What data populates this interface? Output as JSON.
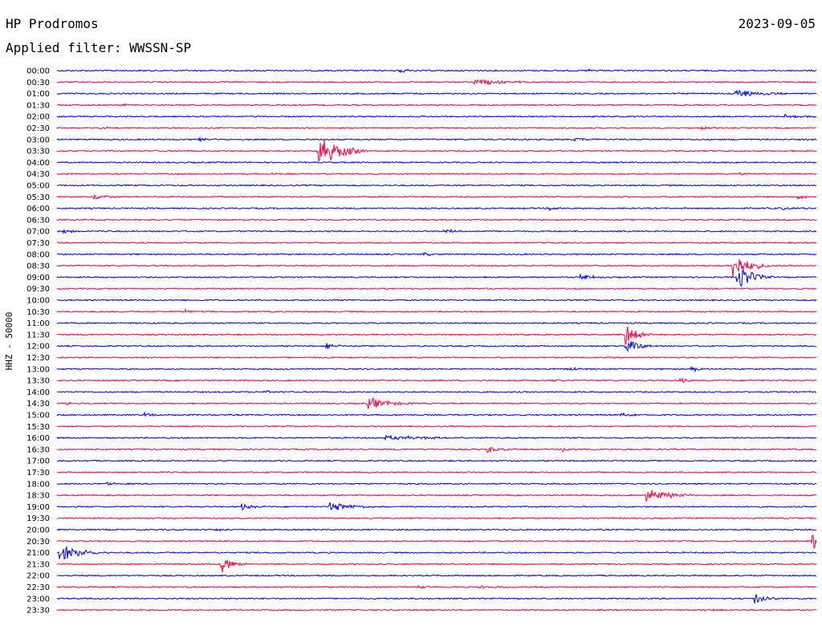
{
  "header": {
    "station": "HP Prodromos",
    "date": "2023-09-05",
    "filter": "Applied filter: WWSSN-SP"
  },
  "chart_data": {
    "type": "line",
    "title": "HP Prodromos",
    "date": "2023-09-05",
    "ylabel": "HHZ - 50000",
    "colors": [
      "#0000ff",
      "#ff0040"
    ],
    "row_labels": [
      "00:00",
      "00:30",
      "01:00",
      "01:30",
      "02:00",
      "02:30",
      "03:00",
      "03:30",
      "04:00",
      "04:30",
      "05:00",
      "05:30",
      "06:00",
      "06:30",
      "07:00",
      "07:30",
      "08:00",
      "08:30",
      "09:00",
      "09:30",
      "10:00",
      "10:30",
      "11:00",
      "11:30",
      "12:00",
      "12:30",
      "13:00",
      "13:30",
      "14:00",
      "14:30",
      "15:00",
      "15:30",
      "16:00",
      "16:30",
      "17:00",
      "17:30",
      "18:00",
      "18:30",
      "19:00",
      "19:30",
      "20:00",
      "20:30",
      "21:00",
      "21:30",
      "22:00",
      "22:30",
      "23:00",
      "23:30"
    ],
    "row_minutes": 30,
    "events": [
      {
        "row": "00:00",
        "minute": 13.5,
        "amp": 0.35,
        "dur": 1.5
      },
      {
        "row": "00:00",
        "minute": 21,
        "amp": 0.3,
        "dur": 1.0
      },
      {
        "row": "00:30",
        "minute": 16.5,
        "amp": 0.7,
        "dur": 2.5
      },
      {
        "row": "01:00",
        "minute": 26.8,
        "amp": 1.0,
        "dur": 2.5
      },
      {
        "row": "01:30",
        "minute": 2.5,
        "amp": 0.3,
        "dur": 1.0
      },
      {
        "row": "02:00",
        "minute": 28.8,
        "amp": 0.5,
        "dur": 1.5
      },
      {
        "row": "02:30",
        "minute": 1.7,
        "amp": 0.25,
        "dur": 1.0
      },
      {
        "row": "02:30",
        "minute": 25.5,
        "amp": 0.25,
        "dur": 1.0
      },
      {
        "row": "03:00",
        "minute": 5.6,
        "amp": 0.4,
        "dur": 1.0
      },
      {
        "row": "03:00",
        "minute": 20.5,
        "amp": 0.45,
        "dur": 1.0
      },
      {
        "row": "03:30",
        "minute": 10.3,
        "amp": 3.5,
        "dur": 2.0
      },
      {
        "row": "04:00",
        "minute": 26.5,
        "amp": 0.35,
        "dur": 1.5
      },
      {
        "row": "04:30",
        "minute": 8.5,
        "amp": 0.25,
        "dur": 1.0
      },
      {
        "row": "04:30",
        "minute": 27.0,
        "amp": 0.25,
        "dur": 1.0
      },
      {
        "row": "05:30",
        "minute": 1.5,
        "amp": 0.6,
        "dur": 1.0
      },
      {
        "row": "05:30",
        "minute": 29.3,
        "amp": 0.4,
        "dur": 1.5
      },
      {
        "row": "06:00",
        "minute": 19.5,
        "amp": 0.35,
        "dur": 1.0
      },
      {
        "row": "06:00",
        "minute": 28.5,
        "amp": 0.3,
        "dur": 1.5
      },
      {
        "row": "07:00",
        "minute": 0.3,
        "amp": 0.4,
        "dur": 1.5
      },
      {
        "row": "07:00",
        "minute": 15.3,
        "amp": 0.4,
        "dur": 1.5
      },
      {
        "row": "08:00",
        "minute": 14.5,
        "amp": 0.3,
        "dur": 1.0
      },
      {
        "row": "08:30",
        "minute": 26.7,
        "amp": 3.0,
        "dur": 1.5
      },
      {
        "row": "09:00",
        "minute": 20.7,
        "amp": 0.7,
        "dur": 1.0
      },
      {
        "row": "09:00",
        "minute": 26.9,
        "amp": 2.5,
        "dur": 1.5
      },
      {
        "row": "09:30",
        "minute": 12.7,
        "amp": 0.3,
        "dur": 1.0
      },
      {
        "row": "10:30",
        "minute": 5.1,
        "amp": 0.6,
        "dur": 0.3
      },
      {
        "row": "11:30",
        "minute": 22.5,
        "amp": 2.2,
        "dur": 1.0
      },
      {
        "row": "12:00",
        "minute": 10.6,
        "amp": 0.8,
        "dur": 1.0
      },
      {
        "row": "12:00",
        "minute": 22.5,
        "amp": 1.6,
        "dur": 1.0
      },
      {
        "row": "13:00",
        "minute": 20.2,
        "amp": 0.35,
        "dur": 1.0
      },
      {
        "row": "13:00",
        "minute": 25.1,
        "amp": 0.5,
        "dur": 1.0
      },
      {
        "row": "13:30",
        "minute": 19.5,
        "amp": 0.3,
        "dur": 1.0
      },
      {
        "row": "13:30",
        "minute": 24.6,
        "amp": 0.6,
        "dur": 0.5
      },
      {
        "row": "14:00",
        "minute": 8.2,
        "amp": 0.25,
        "dur": 1.0
      },
      {
        "row": "14:30",
        "minute": 0.4,
        "amp": 0.3,
        "dur": 1.0
      },
      {
        "row": "14:30",
        "minute": 12.3,
        "amp": 1.3,
        "dur": 2.0
      },
      {
        "row": "15:00",
        "minute": 3.5,
        "amp": 0.4,
        "dur": 1.0
      },
      {
        "row": "15:00",
        "minute": 22.3,
        "amp": 0.5,
        "dur": 1.0
      },
      {
        "row": "16:00",
        "minute": 13.0,
        "amp": 0.4,
        "dur": 6.0
      },
      {
        "row": "16:30",
        "minute": 17.0,
        "amp": 0.8,
        "dur": 1.0
      },
      {
        "row": "16:30",
        "minute": 20.0,
        "amp": 0.6,
        "dur": 0.5
      },
      {
        "row": "17:00",
        "minute": 5.5,
        "amp": 0.2,
        "dur": 1.5
      },
      {
        "row": "18:00",
        "minute": 2.0,
        "amp": 0.3,
        "dur": 1.0
      },
      {
        "row": "18:30",
        "minute": 23.3,
        "amp": 1.5,
        "dur": 2.0
      },
      {
        "row": "19:00",
        "minute": 7.3,
        "amp": 0.6,
        "dur": 1.0
      },
      {
        "row": "19:00",
        "minute": 10.8,
        "amp": 1.0,
        "dur": 2.0
      },
      {
        "row": "20:00",
        "minute": 6.3,
        "amp": 0.3,
        "dur": 0.5
      },
      {
        "row": "20:30",
        "minute": 29.8,
        "amp": 2.0,
        "dur": 1.0
      },
      {
        "row": "21:00",
        "minute": 0.1,
        "amp": 1.8,
        "dur": 2.0
      },
      {
        "row": "21:30",
        "minute": 6.5,
        "amp": 1.8,
        "dur": 1.0
      },
      {
        "row": "22:30",
        "minute": 14.3,
        "amp": 0.3,
        "dur": 1.0
      },
      {
        "row": "22:30",
        "minute": 16.7,
        "amp": 0.3,
        "dur": 1.0
      },
      {
        "row": "23:00",
        "minute": 27.6,
        "amp": 1.2,
        "dur": 1.0
      },
      {
        "row": "23:30",
        "minute": 25.6,
        "amp": 0.3,
        "dur": 1.0
      }
    ]
  }
}
